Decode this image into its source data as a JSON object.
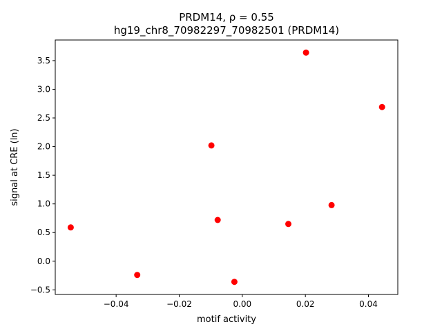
{
  "chart_data": {
    "type": "scatter",
    "title_line1": "PRDM14, ρ = 0.55",
    "title_line2": "hg19_chr8_70982297_70982501 (PRDM14)",
    "xlabel": "motif activity",
    "ylabel": "signal at CRE (ln)",
    "xlim": [
      -0.0593,
      0.0493
    ],
    "ylim": [
      -0.58,
      3.86
    ],
    "xticks": [
      -0.04,
      -0.02,
      0.0,
      0.02,
      0.04
    ],
    "xtick_labels": [
      "−0.04",
      "−0.02",
      "0.00",
      "0.02",
      "0.04"
    ],
    "yticks": [
      -0.5,
      0.0,
      0.5,
      1.0,
      1.5,
      2.0,
      2.5,
      3.0,
      3.5
    ],
    "ytick_labels": [
      "−0.5",
      "0.0",
      "0.5",
      "1.0",
      "1.5",
      "2.0",
      "2.5",
      "3.0",
      "3.5"
    ],
    "marker_color": "#ff0000",
    "points": [
      {
        "x": -0.0544,
        "y": 0.59
      },
      {
        "x": -0.0333,
        "y": -0.24
      },
      {
        "x": -0.0098,
        "y": 2.02
      },
      {
        "x": -0.0078,
        "y": 0.72
      },
      {
        "x": -0.0025,
        "y": -0.36
      },
      {
        "x": 0.0146,
        "y": 0.65
      },
      {
        "x": 0.0202,
        "y": 3.64
      },
      {
        "x": 0.0283,
        "y": 0.98
      },
      {
        "x": 0.0443,
        "y": 2.69
      }
    ]
  }
}
